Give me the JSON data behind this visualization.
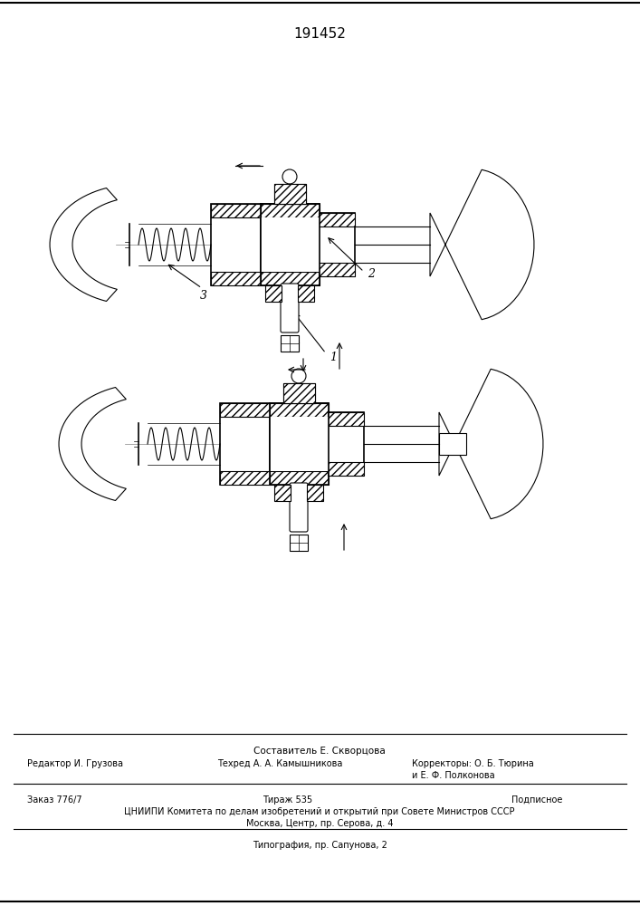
{
  "patent_number": "191452",
  "bg_color": "#ffffff",
  "line_color": "#000000",
  "fig_width": 7.07,
  "fig_height": 10.0,
  "footer": {
    "line1": "Составитель Е. Скворцова",
    "editor": "Редактор И. Грузова",
    "techred": "Техред А. А. Камышникова",
    "correctors": "Корректоры: О. Б. Тюрина",
    "correctors2": "и Е. Ф. Полконова",
    "order": "Заказ 776/7",
    "tirazh": "Тираж 535",
    "podpisnoe": "Подписное",
    "cniip1": "ЦНИИПИ Комитета по делам изобретений и открытий при Совете Министров СССР",
    "cniip2": "Москва, Центр, пр. Серова, д. 4",
    "tipograf": "Типография, пр. Сапунова, 2"
  }
}
